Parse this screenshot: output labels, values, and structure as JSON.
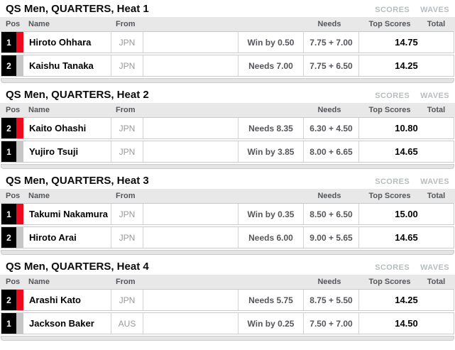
{
  "colors": {
    "jersey_red": "#ee0a1e",
    "jersey_gray": "#c6c6c6",
    "header_bg": "#e8e8e9",
    "muted_text": "#b7bcbe"
  },
  "tabs": {
    "scores": "SCORES",
    "waves": "WAVES"
  },
  "columns": {
    "pos": "Pos",
    "name": "Name",
    "from": "From",
    "needs": "Needs",
    "top_scores": "Top Scores",
    "total": "Total"
  },
  "heats": [
    {
      "title": "QS Men, QUARTERS, Heat 1",
      "rows": [
        {
          "pos": "1",
          "jersey": "red",
          "name": "Hiroto Ohhara",
          "from": "JPN",
          "needs": "Win by 0.50",
          "top_scores": "7.75 + 7.00",
          "total": "14.75"
        },
        {
          "pos": "2",
          "jersey": "gray",
          "name": "Kaishu Tanaka",
          "from": "JPN",
          "needs": "Needs 7.00",
          "top_scores": "7.75 + 6.50",
          "total": "14.25"
        }
      ]
    },
    {
      "title": "QS Men, QUARTERS, Heat 2",
      "rows": [
        {
          "pos": "2",
          "jersey": "red",
          "name": "Kaito Ohashi",
          "from": "JPN",
          "needs": "Needs 8.35",
          "top_scores": "6.30 + 4.50",
          "total": "10.80"
        },
        {
          "pos": "1",
          "jersey": "gray",
          "name": "Yujiro Tsuji",
          "from": "JPN",
          "needs": "Win by 3.85",
          "top_scores": "8.00 + 6.65",
          "total": "14.65"
        }
      ]
    },
    {
      "title": "QS Men, QUARTERS, Heat 3",
      "rows": [
        {
          "pos": "1",
          "jersey": "red",
          "name": "Takumi Nakamura",
          "from": "JPN",
          "needs": "Win by 0.35",
          "top_scores": "8.50 + 6.50",
          "total": "15.00"
        },
        {
          "pos": "2",
          "jersey": "gray",
          "name": "Hiroto Arai",
          "from": "JPN",
          "needs": "Needs 6.00",
          "top_scores": "9.00 + 5.65",
          "total": "14.65"
        }
      ]
    },
    {
      "title": "QS Men, QUARTERS, Heat 4",
      "rows": [
        {
          "pos": "2",
          "jersey": "red",
          "name": "Arashi Kato",
          "from": "JPN",
          "needs": "Needs 5.75",
          "top_scores": "8.75 + 5.50",
          "total": "14.25"
        },
        {
          "pos": "1",
          "jersey": "gray",
          "name": "Jackson Baker",
          "from": "AUS",
          "needs": "Win by 0.25",
          "top_scores": "7.50 + 7.00",
          "total": "14.50"
        }
      ]
    }
  ]
}
